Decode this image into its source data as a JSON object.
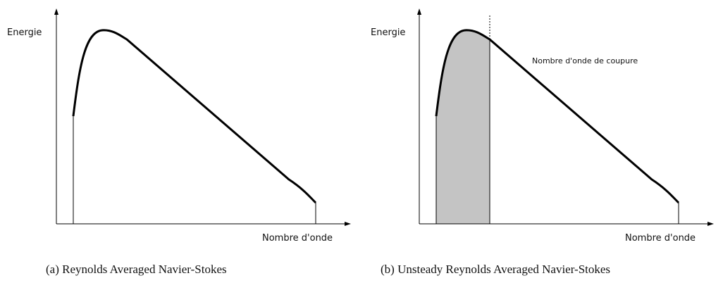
{
  "panels": [
    {
      "y_axis_label": "Energie",
      "x_axis_label": "Nombre d'onde",
      "caption": "(a) Reynolds Averaged Navier-Stokes"
    },
    {
      "y_axis_label": "Energie",
      "x_axis_label": "Nombre d'onde",
      "annotation": "Nombre d'onde de coupure",
      "caption": "(b) Unsteady Reynolds Averaged Navier-Stokes"
    }
  ]
}
